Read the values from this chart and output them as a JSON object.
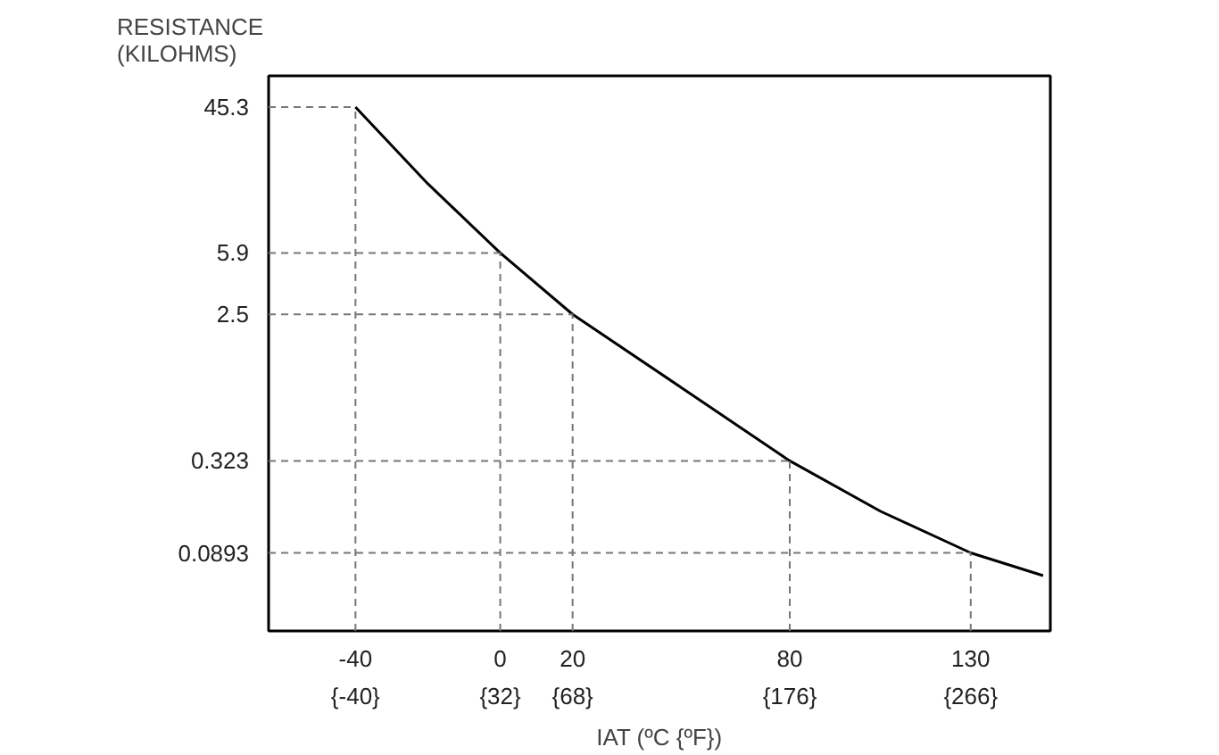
{
  "chart_data": {
    "type": "line",
    "title": "RESISTANCE\n(KILOHMS)",
    "xlabel": "IAT (ºC {ºF})",
    "x": [
      -40,
      -20,
      0,
      20,
      50,
      80,
      105,
      130,
      150
    ],
    "series": [
      {
        "color": "#000000",
        "values": [
          45.3,
          15.5,
          5.9,
          2.5,
          0.9,
          0.323,
          0.16,
          0.0893,
          0.065
        ]
      }
    ],
    "log": "y",
    "xlim": [
      -64,
      152
    ],
    "ylim": [
      0.03,
      70
    ],
    "xticks": [
      -40,
      0,
      20,
      80,
      130
    ],
    "x2lim": [
      -83.2,
      305.6
    ],
    "x2ticks": [
      {
        "value": -40,
        "label": "{-40}"
      },
      {
        "value": 32,
        "label": "{32}"
      },
      {
        "value": 68,
        "label": "{68}"
      },
      {
        "value": 176,
        "label": "{176}"
      },
      {
        "value": 266,
        "label": "{266}"
      }
    ],
    "yticks": [
      45.3,
      5.9,
      2.5,
      0.323,
      0.0893
    ],
    "ref_lines": [
      {
        "axis": "x",
        "value": -40,
        "line_style": "dashed"
      },
      {
        "axis": "x",
        "value": 0,
        "line_style": "dashed"
      },
      {
        "axis": "x",
        "value": 20,
        "line_style": "dashed"
      },
      {
        "axis": "x",
        "value": 80,
        "line_style": "dashed"
      },
      {
        "axis": "x",
        "value": 130,
        "line_style": "dashed"
      },
      {
        "axis": "y",
        "value": 45.3,
        "line_style": "dashed"
      },
      {
        "axis": "y",
        "value": 5.9,
        "line_style": "dashed"
      },
      {
        "axis": "y",
        "value": 2.5,
        "line_style": "dashed"
      },
      {
        "axis": "y",
        "value": 0.323,
        "line_style": "dashed"
      },
      {
        "axis": "y",
        "value": 0.0893,
        "line_style": "dashed"
      }
    ],
    "grid": false,
    "line_style": "solid",
    "marker": "none"
  }
}
